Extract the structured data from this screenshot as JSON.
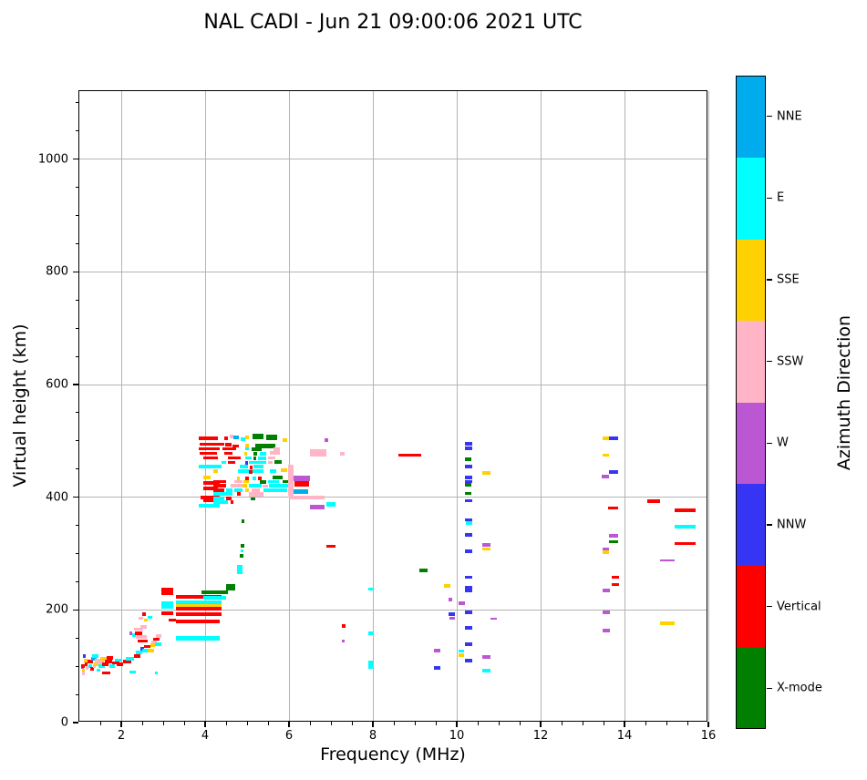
{
  "title": "NAL CADI - Jun 21 09:00:06 2021 UTC",
  "chart_data": {
    "type": "scatter",
    "title": "NAL CADI - Jun 21 09:00:06 2021 UTC",
    "xlabel": "Frequency (MHz)",
    "ylabel": "Virtual height (km)",
    "colorbar_label": "Azimuth Direction",
    "xlim": [
      1,
      16
    ],
    "ylim": [
      0,
      1121
    ],
    "xticks": [
      2,
      4,
      6,
      8,
      10,
      12,
      14,
      16
    ],
    "x_minor_step": 0.5,
    "yticks": [
      0,
      200,
      400,
      600,
      800,
      1000
    ],
    "y_minor_step": 50,
    "grid": true,
    "legend_position": "right-colorbar",
    "legend": [
      {
        "label": "NNE",
        "color": "#00ACEE"
      },
      {
        "label": "E",
        "color": "#00FFFF"
      },
      {
        "label": "SSE",
        "color": "#FFD100"
      },
      {
        "label": "SSW",
        "color": "#FFB5C5"
      },
      {
        "label": "W",
        "color": "#BC57D3"
      },
      {
        "label": "NNW",
        "color": "#3535F3"
      },
      {
        "label": "Vertical",
        "color": "#FF0000"
      },
      {
        "label": "X-mode",
        "color": "#007F00"
      }
    ],
    "segments_format": "[freq_start_MHz, freq_end_MHz, virtual_height_km, legend_index, thickness_km_optional_default_6]",
    "segments": [
      [
        1.05,
        1.09,
        98,
        4
      ],
      [
        1.05,
        1.12,
        100,
        6
      ],
      [
        1.07,
        1.11,
        93,
        2
      ],
      [
        1.1,
        1.2,
        110,
        2
      ],
      [
        1.12,
        1.2,
        103,
        6
      ],
      [
        1.08,
        1.12,
        118,
        5
      ],
      [
        1.06,
        1.1,
        87,
        3
      ],
      [
        1.15,
        1.2,
        97,
        3
      ],
      [
        1.2,
        1.32,
        108,
        6
      ],
      [
        1.22,
        1.3,
        100,
        1
      ],
      [
        1.25,
        1.35,
        95,
        6
      ],
      [
        1.28,
        1.42,
        113,
        0
      ],
      [
        1.3,
        1.45,
        118,
        1
      ],
      [
        1.32,
        1.4,
        100,
        3
      ],
      [
        1.35,
        1.55,
        104,
        2
      ],
      [
        1.38,
        1.52,
        110,
        3
      ],
      [
        1.42,
        1.58,
        107,
        3
      ],
      [
        1.45,
        1.6,
        100,
        1
      ],
      [
        1.5,
        1.65,
        113,
        2
      ],
      [
        1.42,
        1.5,
        93,
        1
      ],
      [
        1.55,
        1.75,
        88,
        6
      ],
      [
        1.55,
        1.7,
        103,
        6
      ],
      [
        1.6,
        1.78,
        108,
        6
      ],
      [
        1.65,
        1.8,
        115,
        6
      ],
      [
        1.72,
        1.85,
        100,
        1
      ],
      [
        1.78,
        1.95,
        106,
        6
      ],
      [
        1.85,
        2.0,
        111,
        1
      ],
      [
        1.9,
        2.05,
        104,
        6
      ],
      [
        2.05,
        2.25,
        108,
        6
      ],
      [
        2.1,
        2.3,
        113,
        1
      ],
      [
        2.2,
        2.35,
        90,
        1
      ],
      [
        2.25,
        2.4,
        155,
        1
      ],
      [
        2.3,
        2.45,
        118,
        6
      ],
      [
        2.35,
        2.5,
        124,
        1
      ],
      [
        2.45,
        2.55,
        131,
        5
      ],
      [
        2.5,
        2.62,
        128,
        1
      ],
      [
        2.55,
        2.7,
        135,
        6
      ],
      [
        2.62,
        2.78,
        128,
        2
      ],
      [
        2.7,
        2.8,
        137,
        2
      ],
      [
        2.72,
        2.85,
        143,
        3
      ],
      [
        2.75,
        2.92,
        148,
        6
      ],
      [
        2.8,
        2.95,
        139,
        1
      ],
      [
        2.82,
        2.95,
        154,
        3
      ],
      [
        2.8,
        2.87,
        88,
        1
      ],
      [
        2.2,
        2.25,
        158,
        4
      ],
      [
        2.3,
        2.52,
        166,
        3
      ],
      [
        2.32,
        2.5,
        159,
        6
      ],
      [
        2.35,
        2.6,
        152,
        3
      ],
      [
        2.4,
        2.62,
        145,
        6
      ],
      [
        2.45,
        2.6,
        170,
        3
      ],
      [
        2.42,
        2.52,
        185,
        3
      ],
      [
        2.54,
        2.62,
        182,
        2
      ],
      [
        2.64,
        2.74,
        187,
        1
      ],
      [
        2.5,
        2.58,
        193,
        6
      ],
      [
        2.95,
        3.25,
        233,
        6,
        12
      ],
      [
        2.95,
        3.25,
        209,
        1,
        13
      ],
      [
        2.95,
        3.25,
        194,
        6
      ],
      [
        3.12,
        3.3,
        182,
        6
      ],
      [
        3.3,
        4.4,
        223,
        6
      ],
      [
        3.3,
        4.4,
        214,
        1
      ],
      [
        3.3,
        4.4,
        208,
        2
      ],
      [
        3.3,
        4.4,
        202,
        6
      ],
      [
        3.3,
        4.4,
        193,
        6
      ],
      [
        3.3,
        4.35,
        180,
        6
      ],
      [
        3.3,
        4.35,
        149,
        1,
        8
      ],
      [
        3.92,
        4.55,
        231,
        7
      ],
      [
        3.95,
        4.5,
        222,
        1
      ],
      [
        4.5,
        4.72,
        240,
        7,
        12
      ],
      [
        4.76,
        4.9,
        272,
        1,
        16
      ],
      [
        4.82,
        4.92,
        296,
        7
      ],
      [
        4.84,
        4.9,
        305,
        1
      ],
      [
        4.85,
        4.93,
        314,
        7
      ],
      [
        4.87,
        4.94,
        358,
        7
      ],
      [
        3.85,
        4.3,
        505,
        6
      ],
      [
        3.88,
        4.45,
        494,
        6
      ],
      [
        3.85,
        4.35,
        486,
        6
      ],
      [
        3.88,
        4.28,
        478,
        6
      ],
      [
        3.95,
        4.3,
        470,
        6
      ],
      [
        3.85,
        4.4,
        455,
        1
      ],
      [
        3.95,
        4.12,
        435,
        2
      ],
      [
        4.2,
        4.3,
        446,
        2
      ],
      [
        3.95,
        4.35,
        425,
        6
      ],
      [
        3.95,
        4.3,
        416,
        6
      ],
      [
        3.9,
        4.35,
        400,
        6
      ],
      [
        3.95,
        4.42,
        394,
        6
      ],
      [
        3.85,
        4.35,
        385,
        1
      ],
      [
        4.45,
        4.55,
        505,
        6
      ],
      [
        4.58,
        4.68,
        508,
        3
      ],
      [
        4.68,
        4.8,
        506,
        0
      ],
      [
        4.85,
        4.95,
        503,
        1
      ],
      [
        4.95,
        5.05,
        506,
        2
      ],
      [
        5.12,
        5.4,
        508,
        7,
        9
      ],
      [
        5.45,
        5.72,
        506,
        7,
        9
      ],
      [
        5.85,
        5.95,
        501,
        2
      ],
      [
        4.48,
        4.62,
        493,
        6
      ],
      [
        4.65,
        4.8,
        491,
        6
      ],
      [
        4.95,
        5.05,
        492,
        2
      ],
      [
        5.2,
        5.68,
        491,
        7,
        9
      ],
      [
        4.42,
        4.75,
        486,
        6
      ],
      [
        4.95,
        5.05,
        486,
        1
      ],
      [
        5.1,
        5.35,
        485,
        7
      ],
      [
        5.62,
        5.78,
        485,
        3
      ],
      [
        4.45,
        4.65,
        478,
        6
      ],
      [
        4.93,
        5.0,
        477,
        2
      ],
      [
        5.15,
        5.25,
        477,
        7
      ],
      [
        5.3,
        5.45,
        477,
        1
      ],
      [
        5.55,
        5.78,
        479,
        3
      ],
      [
        4.55,
        4.85,
        470,
        6
      ],
      [
        4.95,
        5.1,
        470,
        1
      ],
      [
        5.15,
        5.22,
        469,
        7
      ],
      [
        5.26,
        5.45,
        469,
        1
      ],
      [
        5.5,
        5.68,
        470,
        3
      ],
      [
        4.4,
        4.5,
        462,
        1
      ],
      [
        4.55,
        4.72,
        462,
        6
      ],
      [
        4.95,
        5.02,
        461,
        5
      ],
      [
        5.05,
        5.45,
        462,
        1
      ],
      [
        5.5,
        5.6,
        462,
        3
      ],
      [
        5.65,
        5.83,
        463,
        7
      ],
      [
        4.82,
        5.02,
        454,
        1
      ],
      [
        5.07,
        5.14,
        453,
        6
      ],
      [
        5.16,
        5.4,
        454,
        1
      ],
      [
        4.78,
        5.4,
        446,
        1
      ],
      [
        5.05,
        5.12,
        445,
        6
      ],
      [
        5.55,
        5.7,
        447,
        1
      ],
      [
        5.8,
        5.95,
        448,
        2
      ],
      [
        4.75,
        4.83,
        434,
        2
      ],
      [
        4.95,
        5.05,
        433,
        6
      ],
      [
        5.12,
        5.22,
        434,
        1
      ],
      [
        5.25,
        5.35,
        433,
        6
      ],
      [
        5.6,
        5.85,
        435,
        7
      ],
      [
        6.1,
        6.5,
        433,
        4,
        10
      ],
      [
        4.2,
        4.5,
        428,
        6
      ],
      [
        4.7,
        4.9,
        428,
        3
      ],
      [
        4.92,
        5.05,
        428,
        2
      ],
      [
        5.3,
        5.45,
        427,
        7
      ],
      [
        5.5,
        5.75,
        428,
        1
      ],
      [
        5.85,
        6.05,
        428,
        7
      ],
      [
        4.2,
        4.5,
        421,
        6
      ],
      [
        4.6,
        4.9,
        421,
        3
      ],
      [
        4.9,
        5.0,
        421,
        2
      ],
      [
        5.05,
        5.35,
        421,
        1
      ],
      [
        5.36,
        5.5,
        420,
        3
      ],
      [
        5.52,
        6.0,
        421,
        1
      ],
      [
        6.13,
        6.48,
        424,
        6,
        9
      ],
      [
        4.2,
        4.45,
        413,
        6
      ],
      [
        4.5,
        4.65,
        413,
        1
      ],
      [
        4.7,
        4.9,
        413,
        1
      ],
      [
        4.95,
        5.05,
        413,
        2
      ],
      [
        5.1,
        5.3,
        412,
        3
      ],
      [
        5.4,
        5.95,
        413,
        1
      ],
      [
        6.1,
        6.45,
        410,
        0,
        9
      ],
      [
        4.2,
        4.65,
        406,
        1
      ],
      [
        4.75,
        4.85,
        406,
        6
      ],
      [
        5.05,
        5.4,
        405,
        3,
        9
      ],
      [
        4.2,
        4.45,
        398,
        1
      ],
      [
        4.5,
        4.62,
        398,
        6
      ],
      [
        5.08,
        5.2,
        397,
        7
      ],
      [
        6.0,
        6.85,
        399,
        3
      ],
      [
        4.2,
        4.55,
        391,
        1
      ],
      [
        4.6,
        4.68,
        391,
        6
      ],
      [
        5.98,
        6.1,
        430,
        3,
        55
      ],
      [
        6.5,
        6.9,
        479,
        3,
        14
      ],
      [
        6.85,
        6.93,
        501,
        4
      ],
      [
        7.22,
        7.32,
        477,
        3
      ],
      [
        6.5,
        6.85,
        383,
        4,
        8
      ],
      [
        6.9,
        7.1,
        388,
        1,
        8
      ],
      [
        6.9,
        7.1,
        313,
        6
      ],
      [
        7.25,
        7.35,
        172,
        6
      ],
      [
        7.25,
        7.32,
        145,
        4
      ],
      [
        7.9,
        8.0,
        237,
        1
      ],
      [
        7.9,
        8.0,
        158,
        1
      ],
      [
        7.9,
        8.0,
        103,
        1,
        14
      ],
      [
        8.6,
        9.15,
        475,
        6
      ],
      [
        9.1,
        9.3,
        270,
        7
      ],
      [
        9.7,
        9.85,
        243,
        2
      ],
      [
        9.8,
        9.9,
        218,
        4
      ],
      [
        10.05,
        10.2,
        212,
        4
      ],
      [
        9.8,
        9.95,
        192,
        5
      ],
      [
        9.82,
        9.95,
        185,
        4
      ],
      [
        9.45,
        9.6,
        128,
        4
      ],
      [
        9.45,
        9.6,
        97,
        5
      ],
      [
        10.05,
        10.18,
        127,
        1
      ],
      [
        10.05,
        10.18,
        120,
        2
      ],
      [
        10.2,
        10.37,
        495,
        5
      ],
      [
        10.2,
        10.37,
        487,
        5
      ],
      [
        10.2,
        10.35,
        467,
        7
      ],
      [
        10.2,
        10.37,
        455,
        5
      ],
      [
        10.2,
        10.37,
        435,
        5
      ],
      [
        10.2,
        10.37,
        428,
        5
      ],
      [
        10.2,
        10.35,
        422,
        7
      ],
      [
        10.2,
        10.35,
        407,
        7
      ],
      [
        10.2,
        10.37,
        394,
        5
      ],
      [
        10.2,
        10.37,
        360,
        5
      ],
      [
        10.22,
        10.37,
        354,
        1
      ],
      [
        10.2,
        10.37,
        333,
        5
      ],
      [
        10.2,
        10.37,
        304,
        5
      ],
      [
        10.2,
        10.37,
        258,
        5
      ],
      [
        10.2,
        10.37,
        237,
        5,
        10
      ],
      [
        10.2,
        10.37,
        196,
        5
      ],
      [
        10.2,
        10.37,
        168,
        5
      ],
      [
        10.2,
        10.37,
        139,
        5
      ],
      [
        10.2,
        10.37,
        110,
        5
      ],
      [
        10.6,
        10.8,
        443,
        2
      ],
      [
        10.6,
        10.8,
        315,
        4
      ],
      [
        10.6,
        10.8,
        308,
        2
      ],
      [
        10.8,
        10.95,
        184,
        4,
        4
      ],
      [
        10.6,
        10.8,
        117,
        4
      ],
      [
        10.6,
        10.8,
        92,
        1
      ],
      [
        13.48,
        13.63,
        505,
        2
      ],
      [
        13.63,
        13.85,
        505,
        5
      ],
      [
        13.48,
        13.63,
        475,
        2
      ],
      [
        13.63,
        13.85,
        445,
        5
      ],
      [
        13.46,
        13.63,
        437,
        4
      ],
      [
        13.6,
        13.85,
        381,
        6
      ],
      [
        13.62,
        13.85,
        332,
        4
      ],
      [
        13.62,
        13.85,
        321,
        7
      ],
      [
        13.48,
        13.62,
        308,
        4
      ],
      [
        13.48,
        13.62,
        302,
        2
      ],
      [
        13.7,
        13.88,
        258,
        6
      ],
      [
        13.7,
        13.88,
        245,
        6
      ],
      [
        13.48,
        13.65,
        234,
        4
      ],
      [
        13.48,
        13.65,
        196,
        4
      ],
      [
        13.48,
        13.65,
        163,
        4
      ],
      [
        14.55,
        14.85,
        393,
        6
      ],
      [
        15.2,
        15.7,
        377,
        6
      ],
      [
        15.2,
        15.7,
        348,
        1
      ],
      [
        15.2,
        15.7,
        318,
        6
      ],
      [
        14.85,
        15.2,
        288,
        4,
        4
      ],
      [
        14.85,
        15.2,
        176,
        2
      ]
    ]
  }
}
